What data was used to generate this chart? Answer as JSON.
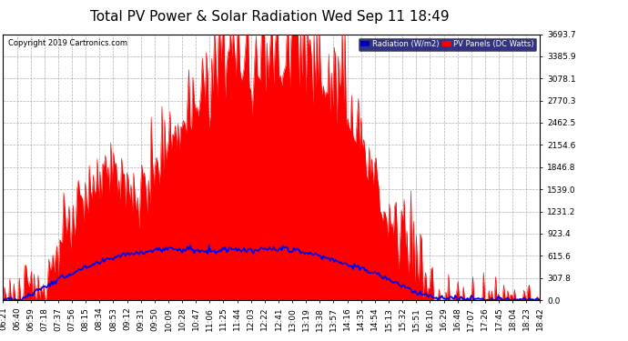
{
  "title": "Total PV Power & Solar Radiation Wed Sep 11 18:49",
  "copyright_text": "Copyright 2019 Cartronics.com",
  "legend_labels": [
    "Radiation (W/m2)",
    "PV Panels (DC Watts)"
  ],
  "background_color": "#ffffff",
  "plot_bg_color": "#ffffff",
  "ylim": [
    0,
    3693.7
  ],
  "yticks": [
    0.0,
    307.8,
    615.6,
    923.4,
    1231.2,
    1539.0,
    1846.8,
    2154.6,
    2462.5,
    2770.3,
    3078.1,
    3385.9,
    3693.7
  ],
  "xtick_labels": [
    "06:21",
    "06:40",
    "06:59",
    "07:18",
    "07:37",
    "07:56",
    "08:15",
    "08:34",
    "08:53",
    "09:12",
    "09:31",
    "09:50",
    "10:09",
    "10:28",
    "10:47",
    "11:06",
    "11:25",
    "11:44",
    "12:03",
    "12:22",
    "12:41",
    "13:00",
    "13:19",
    "13:38",
    "13:57",
    "14:16",
    "14:35",
    "14:54",
    "15:13",
    "15:32",
    "15:51",
    "16:10",
    "16:29",
    "16:48",
    "17:07",
    "17:26",
    "17:45",
    "18:04",
    "18:23",
    "18:42"
  ],
  "grid_color": "#999999",
  "pv_color": "#ff0000",
  "rad_color": "#0000ee",
  "title_fontsize": 11,
  "axis_fontsize": 6.5
}
